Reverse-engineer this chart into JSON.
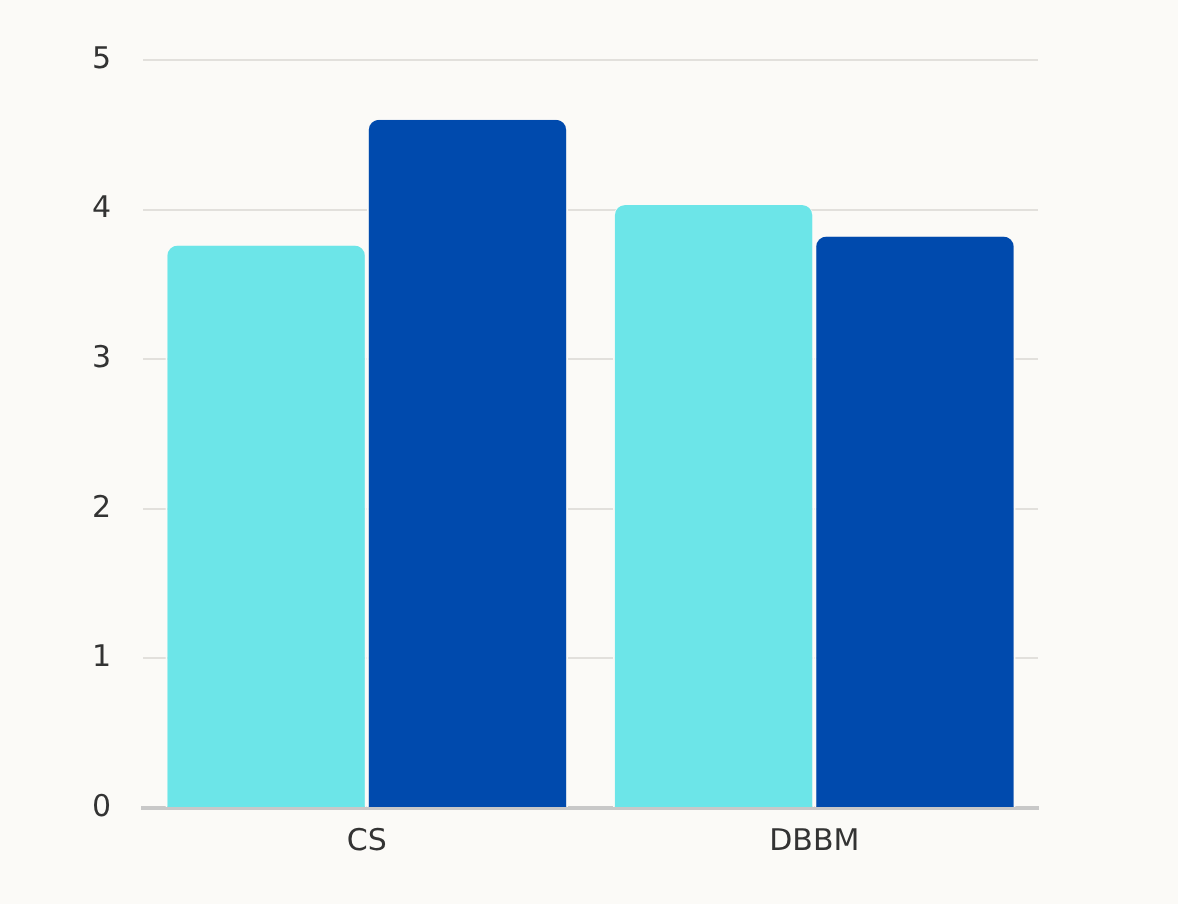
{
  "chart_data": {
    "type": "bar",
    "categories": [
      "CS",
      "DBBM"
    ],
    "series": [
      {
        "color": "#6ce5e8",
        "values": [
          3.76,
          4.03
        ]
      },
      {
        "color": "#004aad",
        "values": [
          4.6,
          3.82
        ]
      }
    ],
    "ylim": [
      0,
      5
    ],
    "yticks": [
      0,
      1,
      2,
      3,
      4,
      5
    ],
    "grid": "y"
  }
}
